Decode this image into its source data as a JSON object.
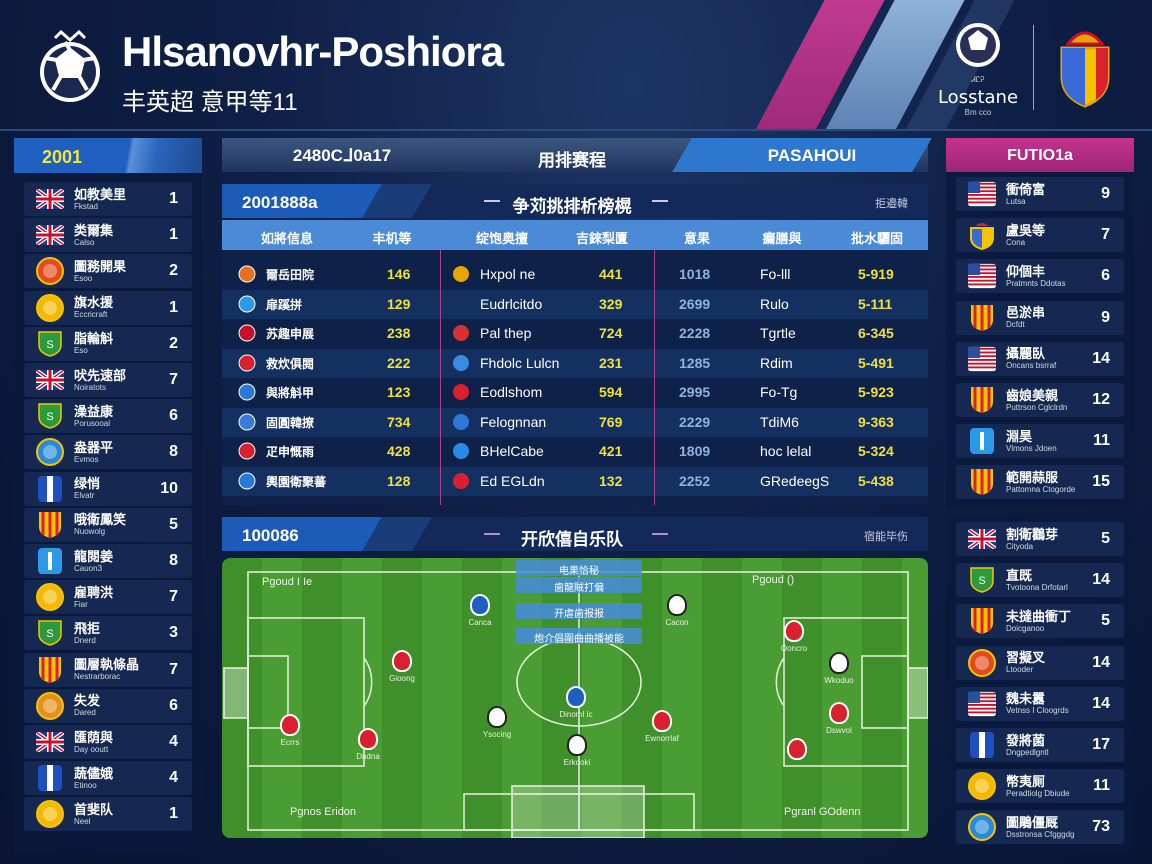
{
  "header": {
    "title": "Hlsanovhr-Poshiora",
    "subtitle": "丰英超  意甲等11",
    "brand_name": "Losstane",
    "brand_top": "ᏗᏝᎮ",
    "brand_sub": "Bm cco"
  },
  "tabs": [
    {
      "label": "2480Cᒧ0a17"
    },
    {
      "label": "用排赛程",
      "active": true
    },
    {
      "label": "PASAHOUI"
    }
  ],
  "left_panel": {
    "title": "2001",
    "items": [
      {
        "name": "如教美里",
        "sub": "Fkstad",
        "value": "1",
        "icon": "uk-flag",
        "color": "#c8102e"
      },
      {
        "name": "类爾集",
        "sub": "Calso",
        "value": "1",
        "icon": "uk-flag",
        "color": "#c8102e"
      },
      {
        "name": "圖務開果",
        "sub": "Esoo",
        "value": "2",
        "icon": "round-crest",
        "color": "#e34a1c"
      },
      {
        "name": "旗水援",
        "sub": "Eccricraft",
        "value": "1",
        "icon": "round-crest",
        "color": "#f5b800"
      },
      {
        "name": "脂輪斛",
        "sub": "Eso",
        "value": "2",
        "icon": "green-shield",
        "color": "#2b9a3a"
      },
      {
        "name": "吠先速部",
        "sub": "Noiratots",
        "value": "7",
        "icon": "uk-flag",
        "color": "#c8102e"
      },
      {
        "name": "澡益康",
        "sub": "Porusooal",
        "value": "6",
        "icon": "green-shield",
        "color": "#2b9a3a"
      },
      {
        "name": "盎器平",
        "sub": "Evmos",
        "value": "8",
        "icon": "round-crest",
        "color": "#2a8ad8"
      },
      {
        "name": "绿悄",
        "sub": "Elvatr",
        "value": "10",
        "icon": "blue-stripe",
        "color": "#1f4fc0"
      },
      {
        "name": "哦衛鳳笑",
        "sub": "Nuowolg",
        "value": "5",
        "icon": "striped-shield",
        "color": "#e8a400"
      },
      {
        "name": "龍閱姜",
        "sub": "Cauon3",
        "value": "8",
        "icon": "blue-shield",
        "color": "#2a9ae8"
      },
      {
        "name": "雇聘洪",
        "sub": "Fiar",
        "value": "7",
        "icon": "round-crest",
        "color": "#f5b800"
      },
      {
        "name": "飛拒",
        "sub": "Dnerd",
        "value": "3",
        "icon": "green-shield",
        "color": "#2b9a3a"
      },
      {
        "name": "圖層執條晶",
        "sub": "Nestrarborac",
        "value": "7",
        "icon": "striped-shield",
        "color": "#e8a400"
      },
      {
        "name": "失发",
        "sub": "Dared",
        "value": "6",
        "icon": "round-crest",
        "color": "#e3901c"
      },
      {
        "name": "匯荫與",
        "sub": "Day ooutt",
        "value": "4",
        "icon": "uk-flag",
        "color": "#c8102e"
      },
      {
        "name": "蔬儘娥",
        "sub": "Etinoo",
        "value": "4",
        "icon": "blue-stripe",
        "color": "#1f4fc0"
      },
      {
        "name": "首斐队",
        "sub": "Neel",
        "value": "1",
        "icon": "round-crest",
        "color": "#f5b800"
      }
    ]
  },
  "right_panel": {
    "title": "FUTIO1a",
    "items": [
      {
        "name": "衝倚富",
        "sub": "Lutsa",
        "value": "9",
        "icon": "us-flag",
        "color": "#c8102e"
      },
      {
        "name": "盧吳等",
        "sub": "Cona",
        "value": "7",
        "icon": "royal-crest",
        "color": "#e8a400"
      },
      {
        "name": "仰個丰",
        "sub": "Pratmnts Ddotas",
        "value": "6",
        "icon": "us-flag",
        "color": "#c8102e"
      },
      {
        "name": "邑淤串",
        "sub": "Dcfdt",
        "value": "9",
        "icon": "striped-shield",
        "color": "#e8a400"
      },
      {
        "name": "攝麗臥",
        "sub": "Oncans bsrraf",
        "value": "14",
        "icon": "us-flag",
        "color": "#c8102e"
      },
      {
        "name": "齒娘美親",
        "sub": "Puttrson Cglclrdn",
        "value": "12",
        "icon": "striped-shield",
        "color": "#e8a400"
      },
      {
        "name": "淵昊",
        "sub": "Vlmons Jdoen",
        "value": "11",
        "icon": "blue-shield",
        "color": "#2a9ae8"
      },
      {
        "name": "範開蒜服",
        "sub": "Pattomna Ctogorde",
        "value": "15",
        "icon": "striped-shield",
        "color": "#e8a400"
      },
      {
        "name": "割衛鸛芽",
        "sub": "Cityoda",
        "value": "5",
        "icon": "uk-flag",
        "color": "#c8102e"
      },
      {
        "name": "直既",
        "sub": "Tvotoona Drfotarl",
        "value": "14",
        "icon": "green-shield",
        "color": "#2b9a3a"
      },
      {
        "name": "未撻曲衝丁",
        "sub": "Doicganoo",
        "value": "5",
        "icon": "striped-shield",
        "color": "#e8a400"
      },
      {
        "name": "習擬叉",
        "sub": "Ltooder",
        "value": "14",
        "icon": "round-crest",
        "color": "#e34a1c"
      },
      {
        "name": "魏未囂",
        "sub": "Vetnss I Cloogrds",
        "value": "14",
        "icon": "us-flag",
        "color": "#c8102e"
      },
      {
        "name": "發將菌",
        "sub": "Dngpedlgntl",
        "value": "17",
        "icon": "blue-stripe",
        "color": "#1f4fc0"
      },
      {
        "name": "幣夷厠",
        "sub": "Peradtiolg Dbiude",
        "value": "11",
        "icon": "round-crest",
        "color": "#f5b800"
      },
      {
        "name": "圖鵰僵厩",
        "sub": "Dsstronsa Cfgggdg",
        "value": "73",
        "icon": "round-crest",
        "color": "#2a8ad8"
      }
    ]
  },
  "stats": {
    "badge": "2001888a",
    "title": "争苅挑排析榜榥",
    "right_label": "拒邉韓",
    "columns": [
      "如將信息",
      "丰机等",
      "绽饱奥擅",
      "吉錸梨匵",
      "意果",
      "瘺膳與",
      "批水驪固"
    ],
    "rows": [
      {
        "team1": "爾岳田院",
        "v1": "146",
        "team2": "Hxpol ne",
        "v2": "441",
        "v3": "1018",
        "player": "Fo-lll",
        "score": "5-919",
        "icon1": "#e8701c",
        "icon2": "#e8a400"
      },
      {
        "team1": "扉蹊拼",
        "v1": "129",
        "team2": "Eudrlcitdo",
        "v2": "329",
        "v3": "2699",
        "player": "Rulo",
        "score": "5-111",
        "icon1": "#2a9ae8",
        "icon2": ""
      },
      {
        "team1": "苏趣申展",
        "v1": "238",
        "team2": "Pal thep",
        "v2": "724",
        "v3": "2228",
        "player": "Tgrtle",
        "score": "6-345",
        "icon1": "#c8102e",
        "icon2": "#d8302e"
      },
      {
        "team1": "救炊俱閱",
        "v1": "222",
        "team2": "Fhdolc Lulcn",
        "v2": "231",
        "v3": "1285",
        "player": "Rdim",
        "score": "5-491",
        "icon1": "#d8202e",
        "icon2": "#3a8ae0"
      },
      {
        "team1": "與將斛甲",
        "v1": "123",
        "team2": "Eodlshom",
        "v2": "594",
        "v3": "2995",
        "player": "Fo-Tg",
        "score": "5-923",
        "icon1": "#2a78d8",
        "icon2": "#d8202e"
      },
      {
        "team1": "固圓韓撩",
        "v1": "734",
        "team2": "Felognnan",
        "v2": "769",
        "v3": "2229",
        "player": "TdiM6",
        "score": "9-363",
        "icon1": "#3a7ad8",
        "icon2": "#2a78d8"
      },
      {
        "team1": "疋申慨雨",
        "v1": "428",
        "team2": "BHelCabe",
        "v2": "421",
        "v3": "1809",
        "player": "hoc lelal",
        "score": "5-324",
        "icon1": "#d8202e",
        "icon2": "#2a8ae8"
      },
      {
        "team1": "輿園衛聚蕃",
        "v1": "128",
        "team2": "Ed EGLdn",
        "v2": "132",
        "v3": "2252",
        "player": "GRedeegS",
        "score": "5-438",
        "icon1": "#2a78d8",
        "icon2": "#d8202e"
      }
    ]
  },
  "lineup": {
    "badge": "100086",
    "title": "开欣僖自乐队",
    "right_label": "宿能毕伤",
    "captions": [
      "电果恰秘",
      "歯龍賊打偏",
      "开虐歯报报",
      "炮介倡圍曲曲播被能"
    ],
    "corner_labels": [
      "Pgoud I Ie",
      "Pgoud ()",
      "Pgnos Eridon",
      "Pgranl GOdenn"
    ],
    "players": [
      {
        "label": "Canca",
        "color": "#1f5fc0"
      },
      {
        "label": "Cacon",
        "color": "#ffffff"
      },
      {
        "label": "Gioong",
        "color": "#d8202e"
      },
      {
        "label": "Ooncro",
        "color": "#d8202e"
      },
      {
        "label": "Dinoml Ic",
        "color": "#1f5fc0"
      },
      {
        "label": "Ysocing",
        "color": "#ffffff"
      },
      {
        "label": "Ecrrs",
        "color": "#d8202e"
      },
      {
        "label": "Dndna",
        "color": "#d8202e"
      },
      {
        "label": "Wkoduo",
        "color": "#ffffff"
      },
      {
        "label": "Ewnorrlaf",
        "color": "#d8202e"
      },
      {
        "label": "Erkooki",
        "color": "#ffffff"
      },
      {
        "label": "Dswvol",
        "color": "#d8202e"
      },
      {
        "label": "",
        "color": "#d8202e"
      }
    ]
  }
}
